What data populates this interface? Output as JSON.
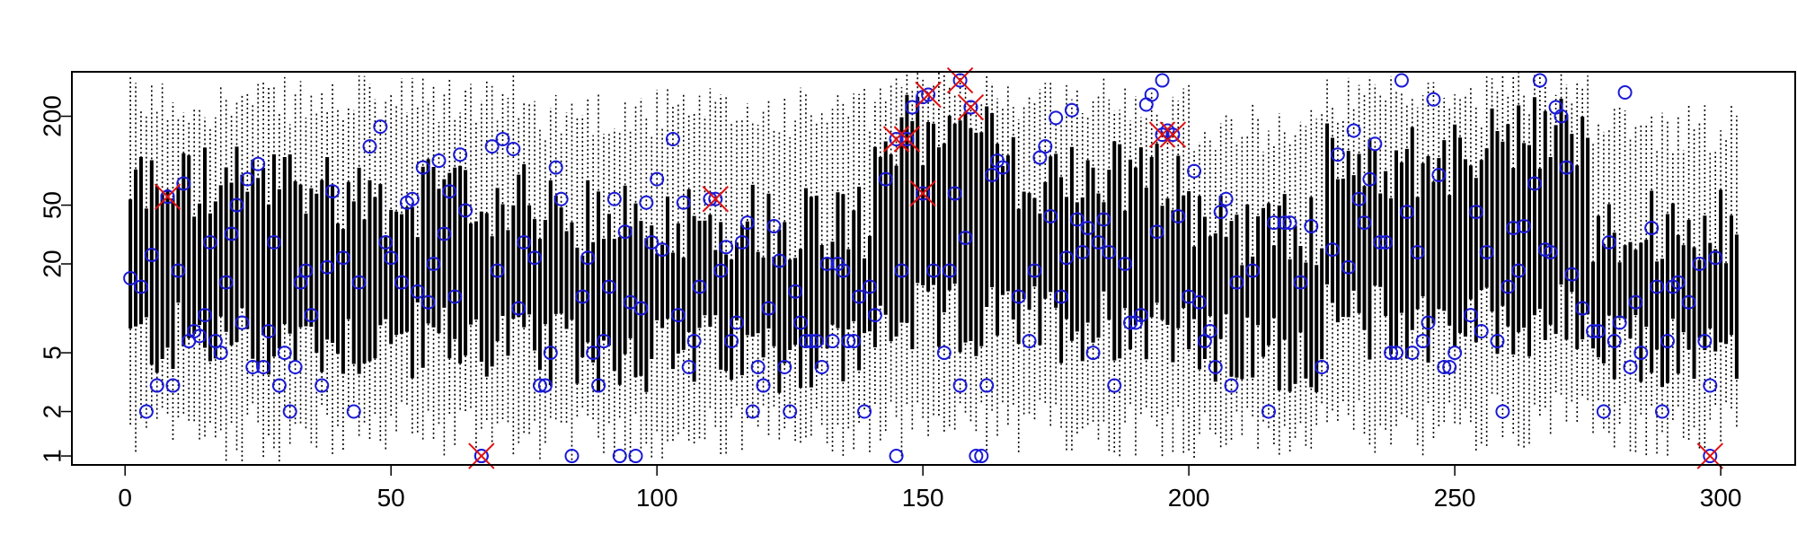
{
  "chart_data": {
    "type": "box",
    "title": "",
    "xlabel": "",
    "ylabel": "",
    "y_scale": "log",
    "xlim": [
      -10,
      314
    ],
    "ylim": [
      0.87,
      400
    ],
    "grid": false,
    "x_ticks": [
      {
        "value": 0,
        "label": "0"
      },
      {
        "value": 50,
        "label": "50"
      },
      {
        "value": 100,
        "label": "100"
      },
      {
        "value": 150,
        "label": "150"
      },
      {
        "value": 200,
        "label": "200"
      },
      {
        "value": 250,
        "label": "250"
      },
      {
        "value": 300,
        "label": "300"
      }
    ],
    "y_ticks": [
      {
        "value": 1,
        "label": "1"
      },
      {
        "value": 2,
        "label": "2"
      },
      {
        "value": 5,
        "label": "5"
      },
      {
        "value": 20,
        "label": "20"
      },
      {
        "value": 50,
        "label": "50"
      },
      {
        "value": 200,
        "label": "200"
      }
    ],
    "box_count": 303,
    "box_bands": [
      {
        "from": 1,
        "to": 40,
        "q1": 6,
        "q3": 70,
        "lo": 1.2,
        "hi": 290
      },
      {
        "from": 41,
        "to": 75,
        "q1": 6,
        "q3": 55,
        "lo": 1.3,
        "hi": 300
      },
      {
        "from": 76,
        "to": 140,
        "q1": 5,
        "q3": 40,
        "lo": 1.2,
        "hi": 250
      },
      {
        "from": 141,
        "to": 165,
        "q1": 8,
        "q3": 150,
        "lo": 1.3,
        "hi": 330
      },
      {
        "from": 166,
        "to": 200,
        "q1": 8,
        "q3": 80,
        "lo": 1.3,
        "hi": 300
      },
      {
        "from": 201,
        "to": 225,
        "q1": 5,
        "q3": 35,
        "lo": 1.2,
        "hi": 200
      },
      {
        "from": 226,
        "to": 255,
        "q1": 8,
        "q3": 100,
        "lo": 1.3,
        "hi": 300
      },
      {
        "from": 256,
        "to": 275,
        "q1": 8,
        "q3": 150,
        "lo": 1.5,
        "hi": 330
      },
      {
        "from": 276,
        "to": 303,
        "q1": 5,
        "q3": 35,
        "lo": 1.3,
        "hi": 200
      }
    ],
    "points_circle": [
      [
        1,
        16
      ],
      [
        3,
        14
      ],
      [
        4,
        2
      ],
      [
        5,
        23
      ],
      [
        6,
        3
      ],
      [
        8,
        57
      ],
      [
        9,
        3
      ],
      [
        10,
        18
      ],
      [
        11,
        70
      ],
      [
        12,
        6
      ],
      [
        13,
        7
      ],
      [
        14,
        6.5
      ],
      [
        15,
        9
      ],
      [
        16,
        28
      ],
      [
        17,
        6
      ],
      [
        18,
        5
      ],
      [
        19,
        15
      ],
      [
        20,
        32
      ],
      [
        21,
        50
      ],
      [
        22,
        8
      ],
      [
        23,
        75
      ],
      [
        24,
        4
      ],
      [
        25,
        95
      ],
      [
        26,
        4
      ],
      [
        27,
        7
      ],
      [
        28,
        28
      ],
      [
        29,
        3
      ],
      [
        30,
        5
      ],
      [
        31,
        2
      ],
      [
        32,
        4
      ],
      [
        33,
        15
      ],
      [
        34,
        18
      ],
      [
        35,
        9
      ],
      [
        37,
        3
      ],
      [
        38,
        19
      ],
      [
        39,
        62
      ],
      [
        41,
        22
      ],
      [
        43,
        2
      ],
      [
        44,
        15
      ],
      [
        46,
        125
      ],
      [
        48,
        170
      ],
      [
        49,
        28
      ],
      [
        50,
        22
      ],
      [
        52,
        15
      ],
      [
        53,
        52
      ],
      [
        54,
        55
      ],
      [
        55,
        13
      ],
      [
        56,
        90
      ],
      [
        57,
        11
      ],
      [
        58,
        20
      ],
      [
        59,
        100
      ],
      [
        60,
        32
      ],
      [
        61,
        62
      ],
      [
        62,
        12
      ],
      [
        63,
        110
      ],
      [
        64,
        46
      ],
      [
        67,
        1
      ],
      [
        69,
        125
      ],
      [
        70,
        18
      ],
      [
        71,
        140
      ],
      [
        73,
        120
      ],
      [
        74,
        10
      ],
      [
        75,
        28
      ],
      [
        77,
        22
      ],
      [
        78,
        3
      ],
      [
        79,
        3
      ],
      [
        80,
        5
      ],
      [
        81,
        90
      ],
      [
        82,
        55
      ],
      [
        84,
        1
      ],
      [
        86,
        12
      ],
      [
        87,
        22
      ],
      [
        88,
        5
      ],
      [
        89,
        3
      ],
      [
        90,
        6
      ],
      [
        91,
        14
      ],
      [
        92,
        55
      ],
      [
        93,
        1
      ],
      [
        94,
        33
      ],
      [
        95,
        11
      ],
      [
        96,
        1
      ],
      [
        97,
        10
      ],
      [
        98,
        52
      ],
      [
        99,
        28
      ],
      [
        100,
        75
      ],
      [
        101,
        25
      ],
      [
        103,
        140
      ],
      [
        104,
        9
      ],
      [
        105,
        52
      ],
      [
        106,
        4
      ],
      [
        107,
        6
      ],
      [
        108,
        14
      ],
      [
        110,
        55
      ],
      [
        112,
        18
      ],
      [
        113,
        26
      ],
      [
        114,
        6
      ],
      [
        115,
        8
      ],
      [
        116,
        28
      ],
      [
        117,
        38
      ],
      [
        118,
        2
      ],
      [
        119,
        4
      ],
      [
        120,
        3
      ],
      [
        121,
        10
      ],
      [
        122,
        36
      ],
      [
        123,
        21
      ],
      [
        124,
        4
      ],
      [
        125,
        2
      ],
      [
        126,
        13
      ],
      [
        127,
        8
      ],
      [
        128,
        6
      ],
      [
        129,
        6
      ],
      [
        130,
        6
      ],
      [
        131,
        4
      ],
      [
        132,
        20
      ],
      [
        133,
        6
      ],
      [
        134,
        20
      ],
      [
        135,
        18
      ],
      [
        136,
        6
      ],
      [
        137,
        6
      ],
      [
        138,
        12
      ],
      [
        139,
        2
      ],
      [
        140,
        14
      ],
      [
        141,
        9
      ],
      [
        143,
        75
      ],
      [
        145,
        1
      ],
      [
        146,
        18
      ],
      [
        147,
        140
      ],
      [
        148,
        230
      ],
      [
        150,
        270
      ],
      [
        152,
        18
      ],
      [
        154,
        5
      ],
      [
        155,
        18
      ],
      [
        156,
        60
      ],
      [
        157,
        3
      ],
      [
        158,
        30
      ],
      [
        159,
        230
      ],
      [
        160,
        1
      ],
      [
        161,
        1
      ],
      [
        162,
        3
      ],
      [
        163,
        80
      ],
      [
        164,
        100
      ],
      [
        165,
        90
      ],
      [
        168,
        12
      ],
      [
        170,
        6
      ],
      [
        171,
        18
      ],
      [
        172,
        105
      ],
      [
        173,
        125
      ],
      [
        174,
        42
      ],
      [
        175,
        195
      ],
      [
        176,
        12
      ],
      [
        177,
        22
      ],
      [
        178,
        220
      ],
      [
        179,
        40
      ],
      [
        180,
        24
      ],
      [
        181,
        35
      ],
      [
        182,
        5
      ],
      [
        183,
        28
      ],
      [
        184,
        40
      ],
      [
        185,
        24
      ],
      [
        186,
        3
      ],
      [
        188,
        20
      ],
      [
        189,
        8
      ],
      [
        190,
        8
      ],
      [
        191,
        9
      ],
      [
        192,
        240
      ],
      [
        193,
        280
      ],
      [
        194,
        33
      ],
      [
        195,
        350
      ],
      [
        196,
        160
      ],
      [
        198,
        42
      ],
      [
        200,
        12
      ],
      [
        201,
        85
      ],
      [
        202,
        11
      ],
      [
        203,
        6
      ],
      [
        204,
        7
      ],
      [
        205,
        4
      ],
      [
        206,
        45
      ],
      [
        207,
        55
      ],
      [
        208,
        3
      ],
      [
        209,
        15
      ],
      [
        212,
        18
      ],
      [
        215,
        2
      ],
      [
        216,
        38
      ],
      [
        218,
        38
      ],
      [
        219,
        38
      ],
      [
        221,
        15
      ],
      [
        223,
        36
      ],
      [
        225,
        4
      ],
      [
        227,
        25
      ],
      [
        228,
        110
      ],
      [
        230,
        19
      ],
      [
        231,
        160
      ],
      [
        232,
        55
      ],
      [
        233,
        38
      ],
      [
        234,
        75
      ],
      [
        235,
        130
      ],
      [
        236,
        28
      ],
      [
        237,
        28
      ],
      [
        238,
        5
      ],
      [
        239,
        5
      ],
      [
        240,
        350
      ],
      [
        241,
        45
      ],
      [
        242,
        5
      ],
      [
        243,
        24
      ],
      [
        244,
        6
      ],
      [
        245,
        8
      ],
      [
        246,
        260
      ],
      [
        247,
        80
      ],
      [
        248,
        4
      ],
      [
        249,
        4
      ],
      [
        250,
        5
      ],
      [
        253,
        9
      ],
      [
        254,
        45
      ],
      [
        255,
        7
      ],
      [
        256,
        24
      ],
      [
        258,
        6
      ],
      [
        259,
        2
      ],
      [
        260,
        14
      ],
      [
        261,
        35
      ],
      [
        262,
        18
      ],
      [
        263,
        36
      ],
      [
        265,
        70
      ],
      [
        266,
        350
      ],
      [
        267,
        25
      ],
      [
        268,
        24
      ],
      [
        269,
        230
      ],
      [
        270,
        200
      ],
      [
        271,
        90
      ],
      [
        272,
        17
      ],
      [
        274,
        10
      ],
      [
        276,
        7
      ],
      [
        277,
        7
      ],
      [
        278,
        2
      ],
      [
        279,
        28
      ],
      [
        280,
        6
      ],
      [
        281,
        8
      ],
      [
        282,
        290
      ],
      [
        283,
        4
      ],
      [
        284,
        11
      ],
      [
        285,
        5
      ],
      [
        287,
        35
      ],
      [
        288,
        14
      ],
      [
        289,
        2
      ],
      [
        290,
        6
      ],
      [
        291,
        14
      ],
      [
        292,
        15
      ],
      [
        294,
        11
      ],
      [
        296,
        20
      ],
      [
        297,
        6
      ],
      [
        298,
        3
      ],
      [
        299,
        22
      ]
    ],
    "points_cross": [
      [
        8,
        57
      ],
      [
        67,
        1
      ],
      [
        111,
        55
      ],
      [
        145,
        140
      ],
      [
        147,
        140
      ],
      [
        151,
        280
      ],
      [
        150,
        60
      ],
      [
        157,
        350
      ],
      [
        159,
        230
      ],
      [
        195,
        150
      ],
      [
        197,
        150
      ],
      [
        298,
        1
      ]
    ]
  }
}
